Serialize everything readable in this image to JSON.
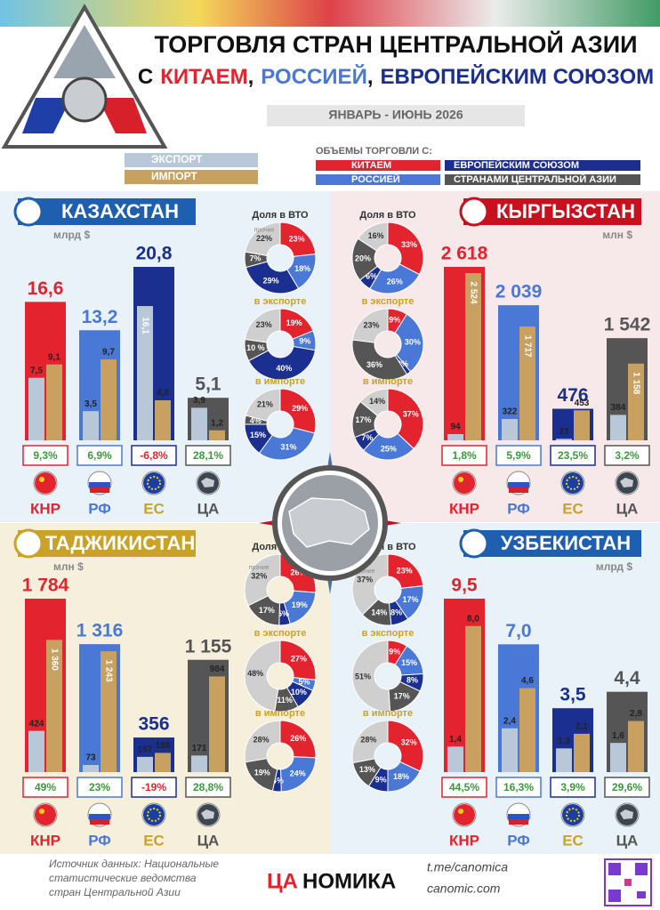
{
  "header": {
    "title_line1": "ТОРГОВЛЯ СТРАН ЦЕНТРАЛЬНОЙ АЗИИ",
    "title_parts": [
      "С",
      "КИТАЕМ",
      ",",
      "РОССИЕЙ",
      ",",
      "ЕВРОПЕЙСКИМ СОЮЗОМ"
    ],
    "period": "ЯНВАРЬ - ИЮНЬ 2026"
  },
  "legend": {
    "export": "ЭКСПОРТ",
    "import": "ИМПОРТ",
    "heading": "ОБЪЕМЫ ТОРГОВЛИ С:",
    "china": "КИТАЕМ",
    "russia": "РОССИЕЙ",
    "eu": "ЕВРОПЕЙСКИМ СОЮЗОМ",
    "ca": "СТРАНАМИ ЦЕНТРАЛЬНОЙ АЗИИ"
  },
  "partners": [
    "КНР",
    "РФ",
    "ЕС",
    "ЦА"
  ],
  "share_titles": [
    "Доля в ВТО",
    "в экспорте",
    "в импорте"
  ],
  "countries": [
    {
      "name": "КАЗАХСТАН",
      "unit": "млрд $",
      "other_label": "прочие",
      "totals": [
        16.6,
        13.2,
        20.8,
        5.1
      ],
      "totals_labels": [
        "16,6",
        "13,2",
        "20,8",
        "5,1"
      ],
      "exports": [
        7.5,
        3.5,
        16.1,
        3.9
      ],
      "exports_labels": [
        "7,5",
        "3,5",
        "16,1",
        "3,9"
      ],
      "imports": [
        9.1,
        9.7,
        4.8,
        1.2
      ],
      "imports_labels": [
        "9,1",
        "9,7",
        "4,8",
        "1,2"
      ],
      "growth": [
        9.3,
        6.9,
        -6.8,
        28.1
      ],
      "growth_labels": [
        "9,3%",
        "6,9%",
        "-6,8%",
        "28,1%"
      ],
      "shares": [
        {
          "values": [
            23,
            18,
            29,
            7,
            22
          ],
          "value_labels": [
            "23%",
            "18%",
            "29%",
            "7%",
            "22%"
          ]
        },
        {
          "values": [
            19,
            9,
            40,
            10,
            23
          ],
          "value_labels": [
            "19%",
            "9%",
            "40%",
            "10 %",
            "23%"
          ]
        },
        {
          "values": [
            29,
            31,
            15,
            4,
            21
          ],
          "value_labels": [
            "29%",
            "31%",
            "15%",
            "4%",
            "21%"
          ]
        }
      ]
    },
    {
      "name": "КЫРГЫЗСТАН",
      "unit": "млн $",
      "totals": [
        2618,
        2039,
        476,
        1542
      ],
      "totals_labels": [
        "2 618",
        "2 039",
        "476",
        "1 542"
      ],
      "exports": [
        94,
        322,
        23,
        384
      ],
      "exports_labels": [
        "94",
        "322",
        "23",
        "384"
      ],
      "imports": [
        2524,
        1717,
        453,
        1158
      ],
      "imports_labels": [
        "2 524",
        "1 717",
        "453",
        "1 158"
      ],
      "growth": [
        1.8,
        5.9,
        23.5,
        3.2
      ],
      "growth_labels": [
        "1,8%",
        "5,9%",
        "23,5%",
        "3,2%"
      ],
      "shares": [
        {
          "values": [
            33,
            26,
            6,
            20,
            16
          ],
          "value_labels": [
            "33%",
            "26%",
            "6%",
            "20%",
            "16%"
          ]
        },
        {
          "values": [
            9,
            30,
            2,
            36,
            23
          ],
          "value_labels": [
            "9%",
            "30%",
            "2%",
            "36%",
            "23%"
          ]
        },
        {
          "values": [
            37,
            25,
            7,
            17,
            14
          ],
          "value_labels": [
            "37%",
            "25%",
            "7%",
            "17%",
            "14%"
          ]
        }
      ]
    },
    {
      "name": "ТАДЖИКИСТАН",
      "unit": "млн $",
      "other_label": "прочие",
      "totals": [
        1784,
        1316,
        356,
        1155
      ],
      "totals_labels": [
        "1 784",
        "1 316",
        "356",
        "1 155"
      ],
      "exports": [
        424,
        73,
        157,
        171
      ],
      "exports_labels": [
        "424",
        "73",
        "157",
        "171"
      ],
      "imports": [
        1360,
        1243,
        198,
        984
      ],
      "imports_labels": [
        "1 360",
        "1 243",
        "198",
        "984"
      ],
      "growth": [
        49,
        23,
        -19,
        28.8
      ],
      "growth_labels": [
        "49%",
        "23%",
        "-19%",
        "28,8%"
      ],
      "shares": [
        {
          "values": [
            26,
            19,
            5,
            17,
            32
          ],
          "value_labels": [
            "26%",
            "19%",
            "5%",
            "17%",
            "32%"
          ]
        },
        {
          "values": [
            27,
            5,
            10,
            11,
            48
          ],
          "value_labels": [
            "27%",
            "5%",
            "10%",
            "11%",
            "48%"
          ]
        },
        {
          "values": [
            26,
            24,
            4,
            19,
            28
          ],
          "value_labels": [
            "26%",
            "24%",
            "4%",
            "19%",
            "28%"
          ]
        }
      ]
    },
    {
      "name": "УЗБЕКИСТАН",
      "unit": "млрд $",
      "other_label": "прочие",
      "totals": [
        9.5,
        7.0,
        3.5,
        4.4
      ],
      "totals_labels": [
        "9,5",
        "7,0",
        "3,5",
        "4,4"
      ],
      "exports": [
        1.4,
        2.4,
        1.3,
        1.6
      ],
      "exports_labels": [
        "1,4",
        "2,4",
        "1,3",
        "1,6"
      ],
      "imports": [
        8.0,
        4.6,
        2.1,
        2.8
      ],
      "imports_labels": [
        "8,0",
        "4,6",
        "2,1",
        "2,8"
      ],
      "growth": [
        44.5,
        16.3,
        3.9,
        29.6
      ],
      "growth_labels": [
        "44,5%",
        "16,3%",
        "3,9%",
        "29,6%"
      ],
      "shares": [
        {
          "values": [
            23,
            17,
            8,
            14,
            37
          ],
          "value_labels": [
            "23%",
            "17%",
            "8%",
            "14%",
            "37%"
          ]
        },
        {
          "values": [
            9,
            15,
            8,
            17,
            51
          ],
          "value_labels": [
            "9%",
            "15%",
            "8%",
            "17%",
            "51%"
          ]
        },
        {
          "values": [
            32,
            18,
            9,
            13,
            28
          ],
          "value_labels": [
            "32%",
            "18%",
            "9%",
            "13%",
            "28%"
          ]
        }
      ]
    }
  ],
  "footer": {
    "source_lines": [
      "Источник данных: Национальные",
      "статистические ведомства",
      "стран Центральной Азии"
    ],
    "logo_a": "ЦА",
    "logo_b": "НОМИКА",
    "telegram": "t.me/canomica",
    "site": "canomic.com"
  }
}
